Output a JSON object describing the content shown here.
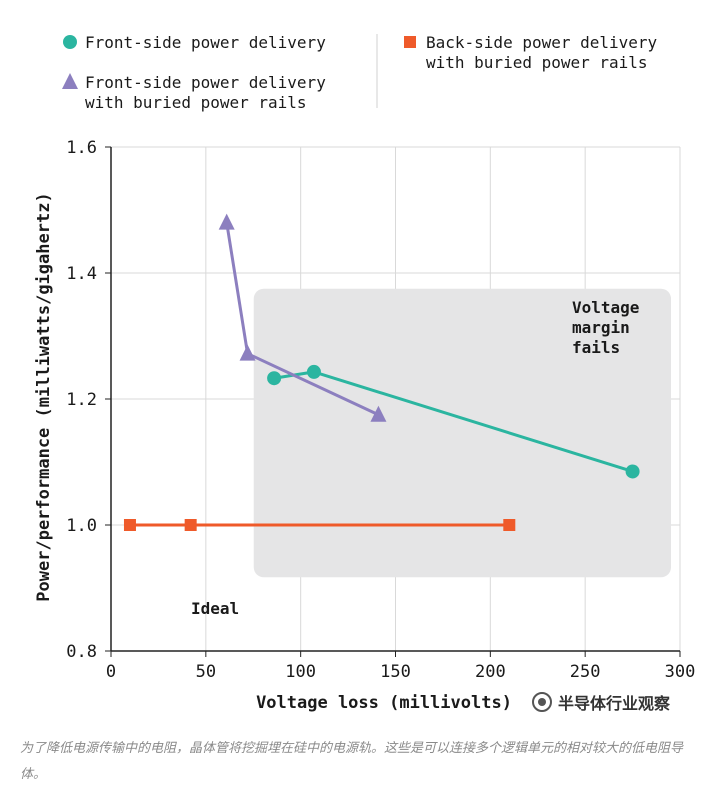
{
  "chart_data": {
    "type": "line",
    "xlabel": "Voltage loss (millivolts)",
    "ylabel": "Power/performance (milliwatts/gigahertz)",
    "xlim": [
      0,
      300
    ],
    "ylim": [
      0.8,
      1.6
    ],
    "x_ticks": [
      0,
      50,
      100,
      150,
      200,
      250,
      300
    ],
    "y_ticks": [
      0.8,
      1.0,
      1.2,
      1.4,
      1.6
    ],
    "x_tick_labels": [
      "0",
      "50",
      "100",
      "150",
      "200",
      "250",
      "300"
    ],
    "y_tick_labels": [
      "0.8",
      "1.0",
      "1.2",
      "1.4",
      "1.6"
    ],
    "grid": true,
    "legend_position": "top",
    "series": [
      {
        "name": "Front-side power delivery",
        "marker": "circle",
        "color": "#2bb5a0",
        "points": [
          [
            86,
            1.233
          ],
          [
            107,
            1.243
          ],
          [
            275,
            1.085
          ]
        ]
      },
      {
        "name": "Front-side power delivery with buried power rails",
        "marker": "triangle",
        "color": "#8c7fbf",
        "points": [
          [
            61,
            1.48
          ],
          [
            72,
            1.272
          ],
          [
            141,
            1.175
          ]
        ]
      },
      {
        "name": "Back-side power delivery with buried power rails",
        "marker": "square",
        "color": "#ef5a2a",
        "points": [
          [
            10,
            1.0
          ],
          [
            42,
            1.0
          ],
          [
            210,
            1.0
          ]
        ]
      }
    ],
    "annotations": [
      {
        "id": "margin",
        "lines": [
          "Voltage",
          "margin",
          "fails"
        ]
      },
      {
        "id": "ideal",
        "lines": [
          "Ideal"
        ]
      }
    ],
    "shaded_region": {
      "x": [
        75,
        295
      ],
      "y": [
        0.917,
        1.375
      ],
      "color": "#e5e5e6"
    }
  },
  "legend": [
    {
      "lines": [
        "Front-side power delivery"
      ],
      "marker": "circle",
      "color": "#2bb5a0"
    },
    {
      "lines": [
        "Front-side power delivery",
        "with buried power rails"
      ],
      "marker": "triangle",
      "color": "#8c7fbf"
    },
    {
      "lines": [
        "Back-side power delivery",
        "with buried power rails"
      ],
      "marker": "square",
      "color": "#ef5a2a"
    }
  ],
  "watermark": "半导体行业观察",
  "caption": "为了降低电源传输中的电阻，晶体管将挖掘埋在硅中的电源轨。这些是可以连接多个逻辑单元的相对较大的低电阻导体。"
}
